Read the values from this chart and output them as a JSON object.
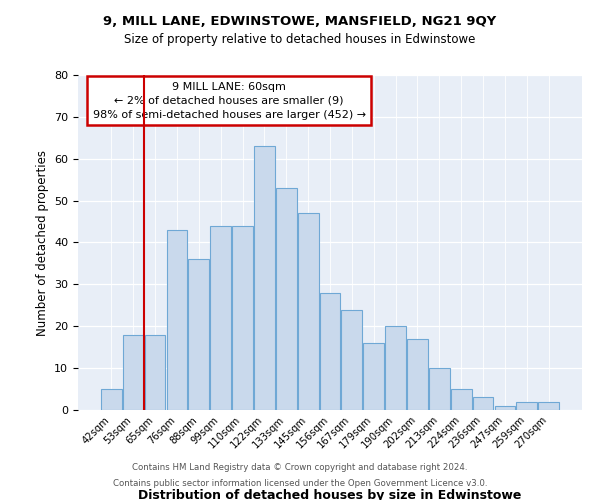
{
  "title1": "9, MILL LANE, EDWINSTOWE, MANSFIELD, NG21 9QY",
  "title2": "Size of property relative to detached houses in Edwinstowe",
  "xlabel": "Distribution of detached houses by size in Edwinstowe",
  "ylabel": "Number of detached properties",
  "categories": [
    "42sqm",
    "53sqm",
    "65sqm",
    "76sqm",
    "88sqm",
    "99sqm",
    "110sqm",
    "122sqm",
    "133sqm",
    "145sqm",
    "156sqm",
    "167sqm",
    "179sqm",
    "190sqm",
    "202sqm",
    "213sqm",
    "224sqm",
    "236sqm",
    "247sqm",
    "259sqm",
    "270sqm"
  ],
  "values": [
    5,
    18,
    18,
    43,
    36,
    44,
    44,
    63,
    53,
    47,
    28,
    24,
    16,
    20,
    17,
    10,
    5,
    3,
    1,
    2,
    2
  ],
  "bar_color": "#c9d9ec",
  "bar_edge_color": "#6fa8d5",
  "vline_color": "#cc0000",
  "annotation_text": "9 MILL LANE: 60sqm\n← 2% of detached houses are smaller (9)\n98% of semi-detached houses are larger (452) →",
  "annotation_box_color": "white",
  "annotation_box_edge": "#cc0000",
  "ylim": [
    0,
    80
  ],
  "yticks": [
    0,
    10,
    20,
    30,
    40,
    50,
    60,
    70,
    80
  ],
  "footer1": "Contains HM Land Registry data © Crown copyright and database right 2024.",
  "footer2": "Contains public sector information licensed under the Open Government Licence v3.0.",
  "plot_bg": "#e8eef7"
}
